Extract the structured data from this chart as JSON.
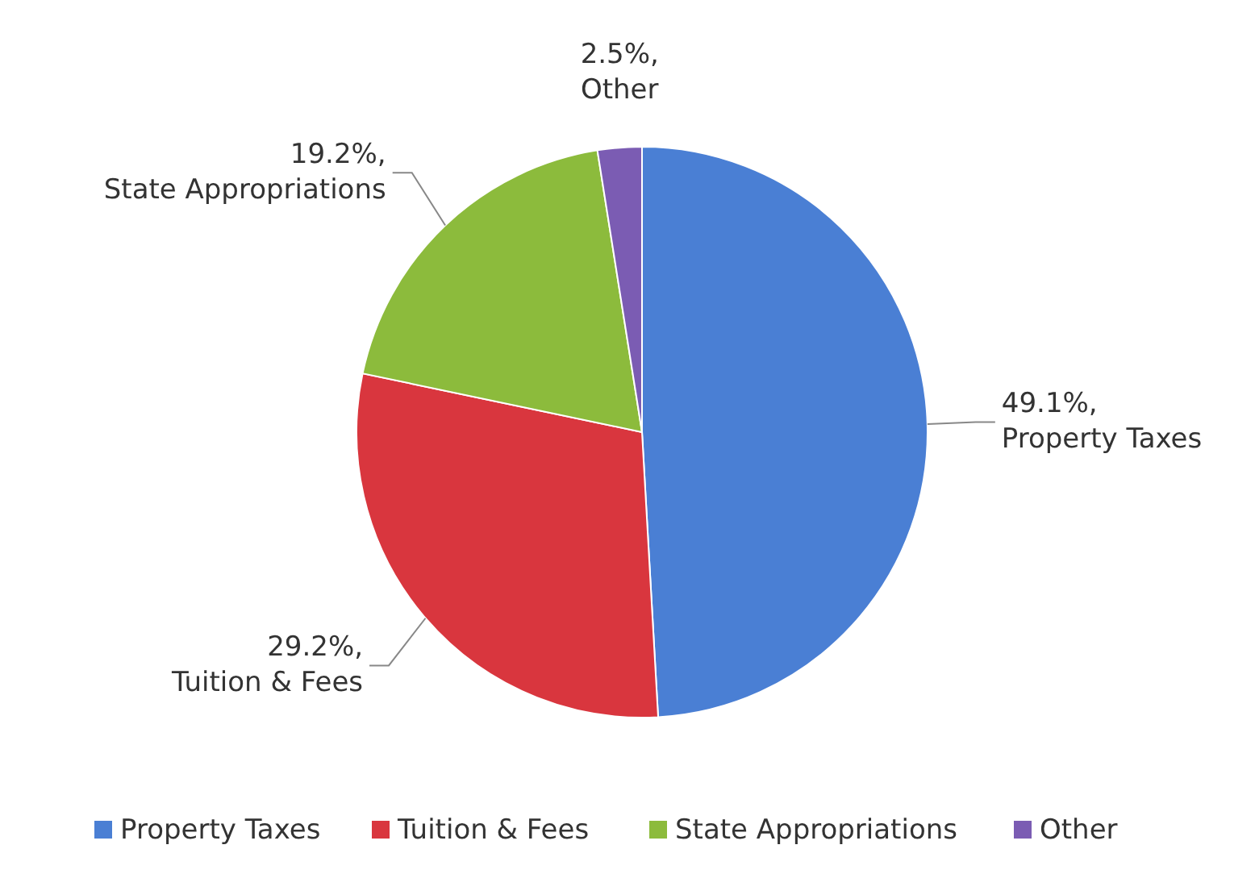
{
  "chart_data": {
    "type": "pie",
    "categories": [
      "Property Taxes",
      "Tuition & Fees",
      "State Appropriations",
      "Other"
    ],
    "values": [
      49.1,
      29.2,
      19.2,
      2.5
    ],
    "colors": [
      "#4a7fd4",
      "#d9363e",
      "#8cbb3c",
      "#7b5cb3"
    ],
    "value_labels": [
      "49.1%,",
      "29.2%,",
      "19.2%,",
      "2.5%,"
    ],
    "legend": "bottom"
  }
}
